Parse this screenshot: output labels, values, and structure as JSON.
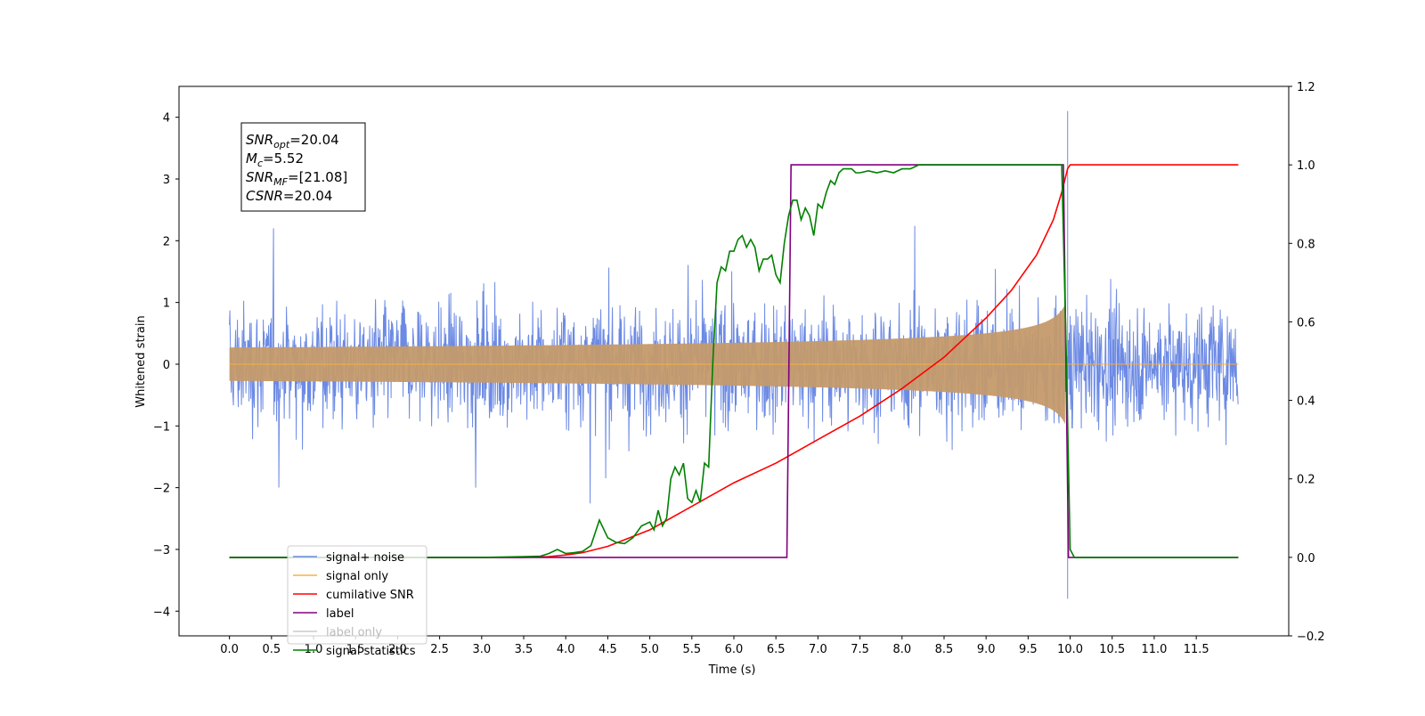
{
  "chart_data": {
    "type": "line",
    "xlabel": "Time (s)",
    "ylabel": "Whitened strain",
    "xlim": [
      -0.6,
      12.6
    ],
    "ylim": [
      -4.4,
      4.5
    ],
    "y2lim": [
      -0.2,
      1.2
    ],
    "x_ticks": [
      0.0,
      0.5,
      1.0,
      1.5,
      2.0,
      2.5,
      3.0,
      3.5,
      4.0,
      4.5,
      5.0,
      5.5,
      6.0,
      6.5,
      7.0,
      7.5,
      8.0,
      8.5,
      9.0,
      9.5,
      10.0,
      10.5,
      11.0,
      11.5
    ],
    "x_tick_labels": [
      "0.0",
      "0.5",
      "1.0",
      "1.5",
      "2.0",
      "2.5",
      "3.0",
      "3.5",
      "4.0",
      "4.5",
      "5.0",
      "5.5",
      "6.0",
      "6.5",
      "7.0",
      "7.5",
      "8.0",
      "8.5",
      "9.0",
      "9.5",
      "10.0",
      "10.5",
      "11.0",
      "11.5"
    ],
    "y_ticks": [
      -4,
      -3,
      -2,
      -1,
      0,
      1,
      2,
      3,
      4
    ],
    "y_tick_labels": [
      "−4",
      "−3",
      "−2",
      "−1",
      "0",
      "1",
      "2",
      "3",
      "4"
    ],
    "y2_ticks": [
      -0.2,
      0.0,
      0.2,
      0.4,
      0.6,
      0.8,
      1.0,
      1.2
    ],
    "y2_tick_labels": [
      "−0.2",
      "0.0",
      "0.2",
      "0.4",
      "0.6",
      "0.8",
      "1.0",
      "1.2"
    ],
    "grid": false,
    "legend_position": "bottom-left",
    "annotation": {
      "lines": [
        {
          "base": "SNR",
          "sub": "opt",
          "rest": "=20.04"
        },
        {
          "base": "M",
          "sub": "c",
          "rest": "=5.52"
        },
        {
          "base": "SNR",
          "sub": "MF",
          "rest": "=[21.08]"
        },
        {
          "base": "CSNR",
          "sub": "",
          "rest": "=20.04"
        }
      ]
    },
    "series": [
      {
        "name": "signal+ noise",
        "color": "#6c8ae4",
        "axis": "left",
        "kind": "noise",
        "x_range": [
          0.0,
          12.0
        ],
        "amplitude_range": [
          -3.8,
          4.1
        ],
        "typical_extent": [
          -1.5,
          1.5
        ]
      },
      {
        "name": "signal only",
        "color": "#c49a6c",
        "axis": "left",
        "kind": "chirp",
        "x_range": [
          0.0,
          12.0
        ],
        "merger_time": 9.95,
        "peak_amplitude": 1.0
      },
      {
        "name": "cumilative SNR",
        "color": "#ff0000",
        "axis": "right",
        "x": [
          0.0,
          3.5,
          3.8,
          4.0,
          4.2,
          4.5,
          5.0,
          5.5,
          6.0,
          6.5,
          7.0,
          7.5,
          8.0,
          8.5,
          9.0,
          9.3,
          9.6,
          9.8,
          9.9,
          9.97,
          10.0,
          12.0
        ],
        "y": [
          0.0,
          0.0,
          0.002,
          0.006,
          0.012,
          0.028,
          0.07,
          0.13,
          0.19,
          0.24,
          0.3,
          0.36,
          0.43,
          0.51,
          0.61,
          0.68,
          0.77,
          0.86,
          0.93,
          0.99,
          1.0,
          1.0
        ]
      },
      {
        "name": "label",
        "color": "#800080",
        "axis": "right",
        "x": [
          0.0,
          6.63,
          6.68,
          9.92,
          9.98,
          12.0
        ],
        "y": [
          0.0,
          0.0,
          1.0,
          1.0,
          0.0,
          0.0
        ]
      },
      {
        "name": "label only",
        "color": "#808080",
        "axis": "right",
        "hidden": true,
        "x": [],
        "y": []
      },
      {
        "name": "signal statistics",
        "color": "#008000",
        "axis": "right",
        "x": [
          0.0,
          3.0,
          3.5,
          3.7,
          3.8,
          3.9,
          4.0,
          4.1,
          4.2,
          4.3,
          4.4,
          4.5,
          4.6,
          4.7,
          4.8,
          4.9,
          5.0,
          5.05,
          5.1,
          5.15,
          5.2,
          5.25,
          5.3,
          5.35,
          5.4,
          5.45,
          5.5,
          5.55,
          5.6,
          5.65,
          5.7,
          5.75,
          5.8,
          5.85,
          5.9,
          5.95,
          6.0,
          6.05,
          6.1,
          6.15,
          6.2,
          6.25,
          6.3,
          6.35,
          6.4,
          6.45,
          6.5,
          6.55,
          6.6,
          6.65,
          6.7,
          6.75,
          6.8,
          6.85,
          6.9,
          6.95,
          7.0,
          7.05,
          7.1,
          7.15,
          7.2,
          7.25,
          7.3,
          7.35,
          7.4,
          7.45,
          7.5,
          7.6,
          7.7,
          7.8,
          7.9,
          8.0,
          8.1,
          8.2,
          8.3,
          8.4,
          8.5,
          9.0,
          9.5,
          9.8,
          9.9,
          9.95,
          10.0,
          10.05,
          12.0
        ],
        "y": [
          0.0,
          0.0,
          0.002,
          0.003,
          0.01,
          0.02,
          0.01,
          0.012,
          0.015,
          0.03,
          0.095,
          0.05,
          0.038,
          0.035,
          0.05,
          0.08,
          0.09,
          0.07,
          0.12,
          0.08,
          0.1,
          0.2,
          0.23,
          0.21,
          0.24,
          0.15,
          0.14,
          0.17,
          0.14,
          0.24,
          0.23,
          0.5,
          0.7,
          0.74,
          0.73,
          0.78,
          0.78,
          0.81,
          0.82,
          0.79,
          0.81,
          0.79,
          0.73,
          0.76,
          0.76,
          0.77,
          0.72,
          0.7,
          0.8,
          0.87,
          0.91,
          0.91,
          0.86,
          0.89,
          0.87,
          0.82,
          0.9,
          0.89,
          0.93,
          0.96,
          0.95,
          0.98,
          0.99,
          0.99,
          0.99,
          0.98,
          0.98,
          0.985,
          0.98,
          0.985,
          0.98,
          0.99,
          0.99,
          1.0,
          1.0,
          1.0,
          1.0,
          1.0,
          1.0,
          1.0,
          1.0,
          0.55,
          0.02,
          0.0,
          0.0
        ]
      }
    ]
  }
}
